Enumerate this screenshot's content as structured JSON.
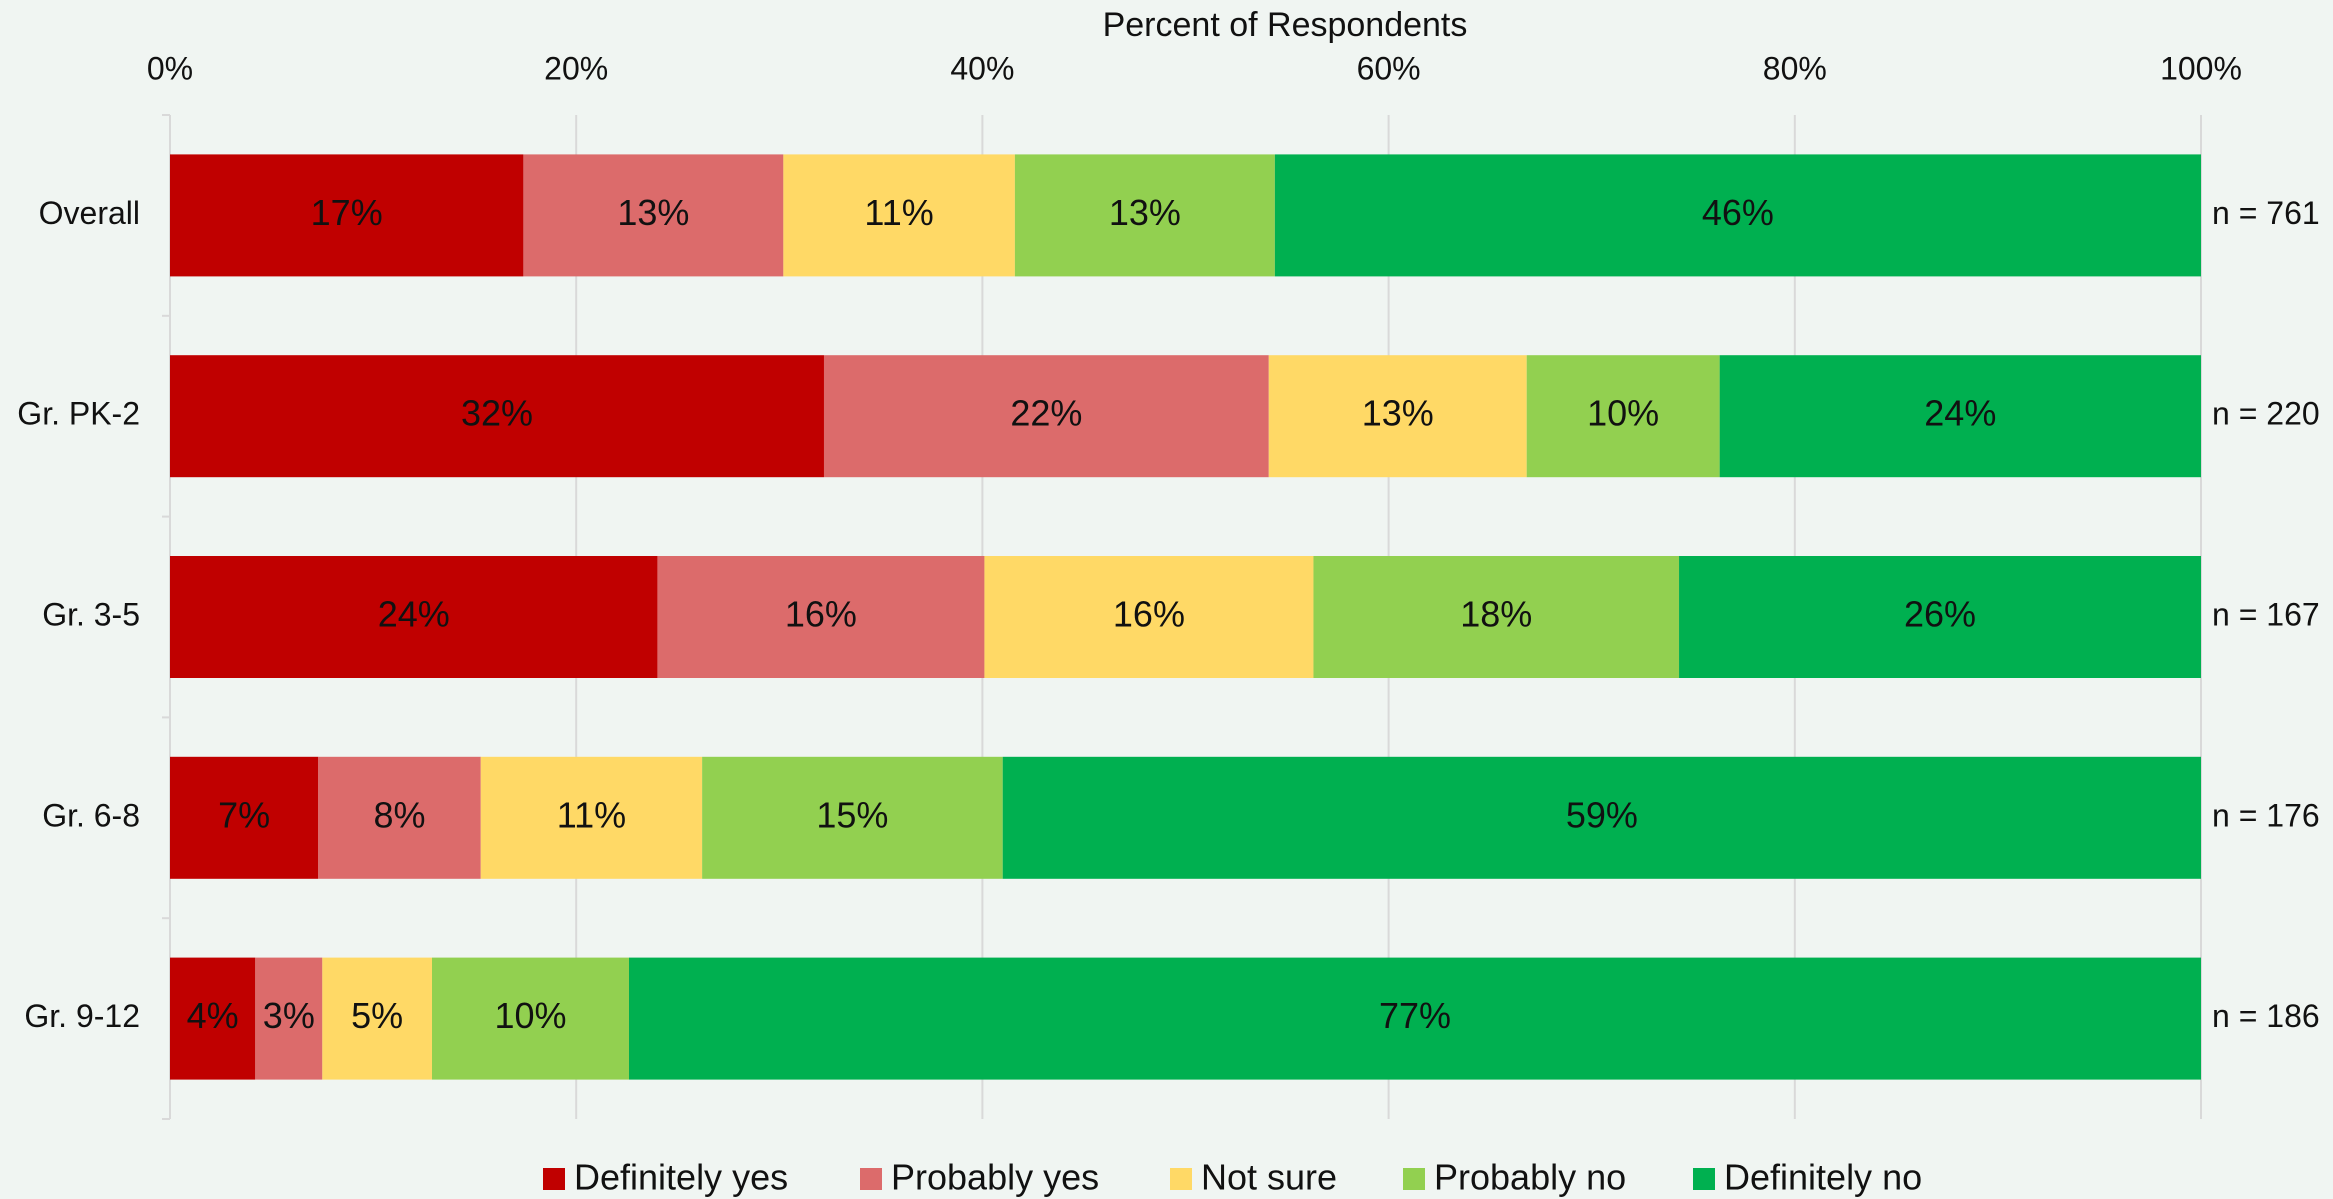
{
  "chart_data": {
    "type": "stacked_bar_horizontal",
    "x_axis_label": "Percent of Respondents",
    "categories": [
      "Overall",
      "Gr. PK-2",
      "Gr. 3-5",
      "Gr. 6-8",
      "Gr. 9-12"
    ],
    "right_labels": [
      "n = 761",
      "n = 220",
      "n = 167",
      "n = 176",
      "n = 186"
    ],
    "xlim": [
      0,
      100
    ],
    "xticks": [
      {
        "value": 0,
        "label": "0%"
      },
      {
        "value": 20,
        "label": "20%"
      },
      {
        "value": 40,
        "label": "40%"
      },
      {
        "value": 60,
        "label": "60%"
      },
      {
        "value": 80,
        "label": "80%"
      },
      {
        "value": 100,
        "label": "100%"
      }
    ],
    "grid": true,
    "legend": "bottom",
    "series": [
      {
        "name": "Definitely yes",
        "color": "#c00000",
        "values": [
          17.4,
          32.2,
          24.0,
          7.3,
          4.2
        ],
        "value_labels": [
          "17%",
          "32%",
          "24%",
          "7%",
          "4%"
        ]
      },
      {
        "name": "Probably yes",
        "color": "#dc6b6b",
        "values": [
          12.8,
          21.9,
          16.1,
          8.0,
          3.3
        ],
        "value_labels": [
          "13%",
          "22%",
          "16%",
          "8%",
          "3%"
        ]
      },
      {
        "name": "Not sure",
        "color": "#ffd966",
        "values": [
          11.4,
          12.7,
          16.2,
          10.9,
          5.4
        ],
        "value_labels": [
          "11%",
          "13%",
          "16%",
          "11%",
          "5%"
        ]
      },
      {
        "name": "Probably no",
        "color": "#92d050",
        "values": [
          12.8,
          9.5,
          18.0,
          14.8,
          9.7
        ],
        "value_labels": [
          "13%",
          "10%",
          "18%",
          "15%",
          "10%"
        ]
      },
      {
        "name": "Definitely no",
        "color": "#00b050",
        "values": [
          45.6,
          23.7,
          25.7,
          59.0,
          77.4
        ],
        "value_labels": [
          "46%",
          "24%",
          "26%",
          "59%",
          "77%"
        ]
      }
    ]
  }
}
